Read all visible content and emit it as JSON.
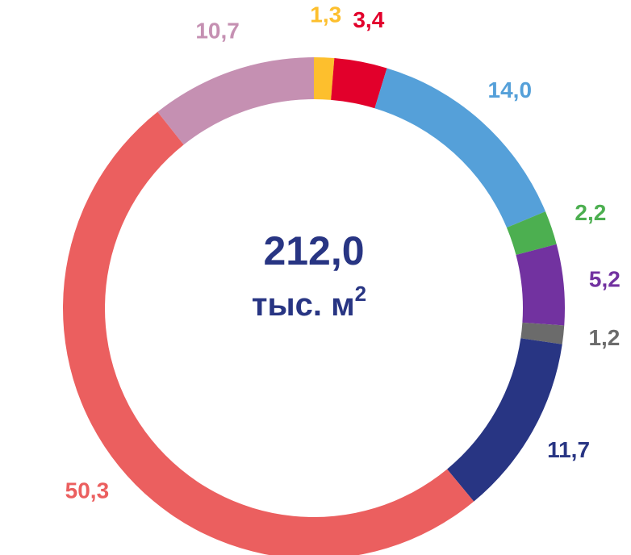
{
  "chart_data": {
    "type": "donut",
    "center_value": "212,0",
    "center_unit": "тыс. м",
    "center_unit_sup": "2",
    "values": [
      1.3,
      3.4,
      14.0,
      2.2,
      5.2,
      1.2,
      11.7,
      50.3,
      10.7
    ],
    "value_labels": [
      "1,3",
      "3,4",
      "14,0",
      "2,2",
      "5,2",
      "1,2",
      "11,7",
      "50,3",
      "10,7"
    ],
    "colors": [
      "#fdbf2d",
      "#e2002b",
      "#55a0d9",
      "#4caf50",
      "#7232a0",
      "#6b6b6b",
      "#283583",
      "#eb5f5f",
      "#c590b2"
    ]
  }
}
